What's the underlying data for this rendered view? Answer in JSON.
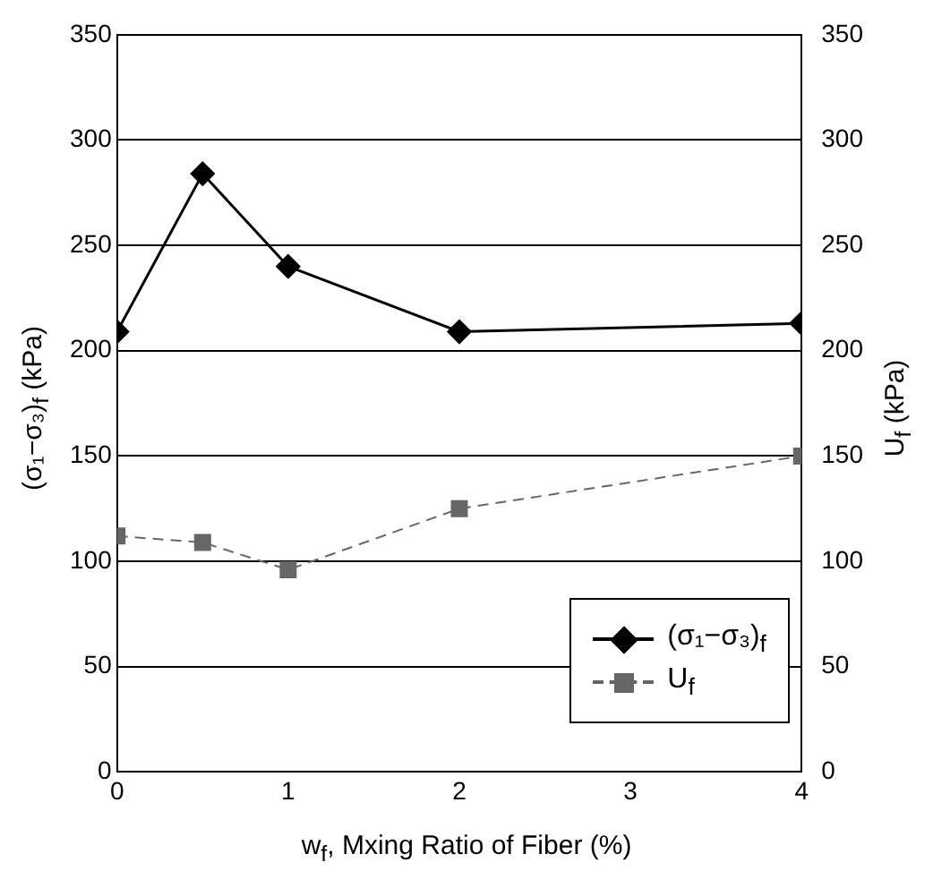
{
  "chart_data": {
    "type": "line",
    "xlabel": "w$_{f}$, Mxing Ratio of Fiber (%)",
    "ylabel": "(σ₁−σ₃)$_{f}$ (kPa)",
    "y2label": "U$_{f}$ (kPa)",
    "x": [
      0,
      0.5,
      1,
      2,
      4
    ],
    "xlim": [
      0,
      4
    ],
    "xticks": [
      0,
      1,
      2,
      3,
      4
    ],
    "ylim": [
      0,
      350
    ],
    "yticks": [
      0,
      50,
      100,
      150,
      200,
      250,
      300,
      350
    ],
    "y2lim": [
      0,
      350
    ],
    "y2ticks": [
      0,
      50,
      100,
      150,
      200,
      250,
      300,
      350
    ],
    "grid": "y",
    "legend": "bottom right",
    "series": [
      {
        "name": "(σ₁−σ₃)$_{f}$",
        "color": "#000000",
        "values": [
          209,
          284,
          240,
          209,
          213
        ],
        "marker": "diamond",
        "line_style": "solid"
      },
      {
        "name": "U$_{f}$",
        "color": "#666666",
        "values": [
          112,
          109,
          96,
          125,
          150
        ],
        "axis": "y2",
        "marker": "square",
        "line_style": "dashed"
      }
    ]
  }
}
